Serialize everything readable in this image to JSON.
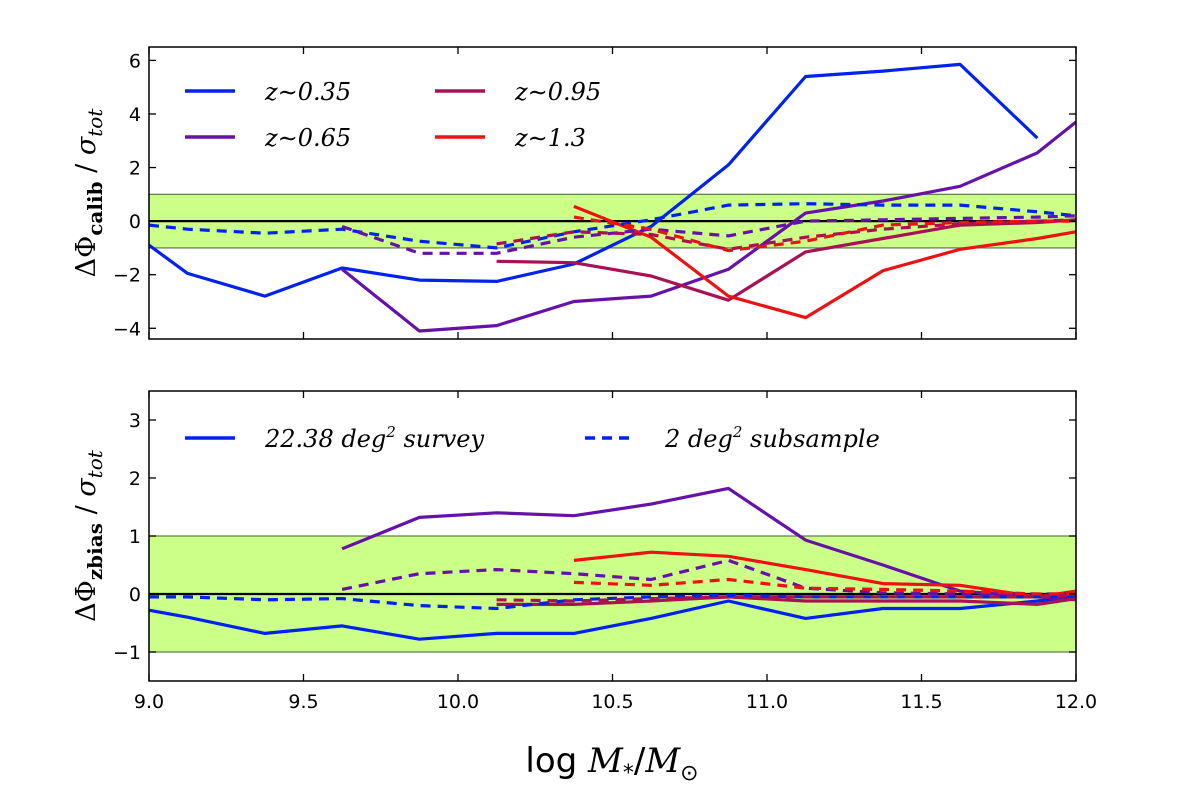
{
  "chart_data": [
    {
      "type": "line",
      "panel": "top",
      "ylabel": "ΔΦcalib / σtot",
      "ylabel_parts": {
        "delta_phi": "ΔΦ",
        "sub": "calib",
        "sep": " / ",
        "sigma": "σ",
        "sigma_sub": "tot"
      },
      "xlim": [
        9.0,
        12.0
      ],
      "ylim": [
        -4.4,
        6.5
      ],
      "yticks": [
        -4,
        -2,
        0,
        2,
        4,
        6
      ],
      "ytick_labels": [
        "−4",
        "−2",
        "0",
        "2",
        "4",
        "6"
      ],
      "band": [
        -1,
        1
      ],
      "band_color": "#ccff88",
      "zero_line": 0,
      "legend": [
        {
          "label": "z∼0.35",
          "color": "#0022ee"
        },
        {
          "label": "z∼0.95",
          "color": "#aa1155"
        },
        {
          "label": "z∼0.65",
          "color": "#6611aa"
        },
        {
          "label": "z∼1.3",
          "color": "#ee1111"
        }
      ],
      "series": [
        {
          "name": "z∼0.35 survey",
          "style": "solid",
          "color": "#0022ee",
          "x": [
            9.0,
            9.125,
            9.375,
            9.625,
            9.875,
            10.125,
            10.375,
            10.625,
            10.875,
            11.125,
            11.375,
            11.625,
            11.875
          ],
          "y": [
            -0.9,
            -1.95,
            -2.8,
            -1.75,
            -2.2,
            -2.25,
            -1.6,
            -0.2,
            2.1,
            5.4,
            5.6,
            5.85,
            3.1
          ]
        },
        {
          "name": "z∼0.65 survey",
          "style": "solid",
          "color": "#6611aa",
          "x": [
            9.625,
            9.875,
            10.125,
            10.375,
            10.625,
            10.875,
            11.125,
            11.375,
            11.625,
            11.875,
            12.0
          ],
          "y": [
            -1.8,
            -4.1,
            -3.9,
            -3.0,
            -2.8,
            -1.8,
            0.3,
            0.75,
            1.3,
            2.55,
            3.7
          ]
        },
        {
          "name": "z∼0.95 survey",
          "style": "solid",
          "color": "#aa1155",
          "x": [
            10.125,
            10.375,
            10.625,
            10.875,
            11.125,
            11.375,
            11.625,
            11.875,
            12.0
          ],
          "y": [
            -1.5,
            -1.55,
            -2.05,
            -2.95,
            -1.15,
            -0.65,
            -0.15,
            -0.05,
            0.05
          ]
        },
        {
          "name": "z∼1.3 survey",
          "style": "solid",
          "color": "#ee1111",
          "x": [
            10.375,
            10.625,
            10.875,
            11.125,
            11.375,
            11.625,
            11.875,
            12.0
          ],
          "y": [
            0.55,
            -0.6,
            -2.8,
            -3.6,
            -1.85,
            -1.05,
            -0.65,
            -0.4
          ]
        },
        {
          "name": "z∼0.35 subsample",
          "style": "dashed",
          "color": "#0022ee",
          "x": [
            9.0,
            9.125,
            9.375,
            9.625,
            9.875,
            10.125,
            10.375,
            10.625,
            10.875,
            11.125,
            11.375,
            11.625,
            11.875,
            12.0
          ],
          "y": [
            -0.15,
            -0.3,
            -0.45,
            -0.3,
            -0.75,
            -1.0,
            -0.4,
            0.05,
            0.6,
            0.65,
            0.6,
            0.6,
            0.35,
            0.2
          ]
        },
        {
          "name": "z∼0.65 subsample",
          "style": "dashed",
          "color": "#6611aa",
          "x": [
            9.625,
            9.875,
            10.125,
            10.375,
            10.625,
            10.875,
            11.125,
            11.375,
            11.625,
            11.875,
            12.0
          ],
          "y": [
            -0.2,
            -1.2,
            -1.2,
            -0.6,
            -0.3,
            -0.55,
            0.0,
            0.05,
            0.1,
            0.15,
            0.2
          ]
        },
        {
          "name": "z∼0.95 subsample",
          "style": "dashed",
          "color": "#aa1155",
          "x": [
            10.125,
            10.375,
            10.625,
            10.875,
            11.125,
            11.375,
            11.625,
            11.875,
            12.0
          ],
          "y": [
            -0.85,
            -0.4,
            -0.5,
            -1.05,
            -0.6,
            -0.3,
            -0.1,
            0.0,
            0.05
          ]
        },
        {
          "name": "z∼1.3 subsample",
          "style": "dashed",
          "color": "#ee1111",
          "x": [
            10.375,
            10.625,
            10.875,
            11.125,
            11.375,
            11.625,
            11.875,
            12.0
          ],
          "y": [
            0.15,
            -0.3,
            -1.1,
            -0.75,
            -0.15,
            -0.05,
            0.0,
            0.0
          ]
        }
      ]
    },
    {
      "type": "line",
      "panel": "bottom",
      "ylabel": "ΔΦzbias / σtot",
      "ylabel_parts": {
        "delta_phi": "ΔΦ",
        "sub": "zbias",
        "sep": " / ",
        "sigma": "σ",
        "sigma_sub": "tot"
      },
      "xlabel": "log M*/M⊙",
      "xlabel_parts": {
        "log": "log ",
        "m": "M",
        "m_sub": "*",
        "slash": "/",
        "m2": "M",
        "m2_sub": "⊙"
      },
      "xlim": [
        9.0,
        12.0
      ],
      "xticks": [
        9.0,
        9.5,
        10.0,
        10.5,
        11.0,
        11.5,
        12.0
      ],
      "xtick_labels": [
        "9.0",
        "9.5",
        "10.0",
        "10.5",
        "11.0",
        "11.5",
        "12.0"
      ],
      "ylim": [
        -1.5,
        3.5
      ],
      "yticks": [
        -1,
        0,
        1,
        2,
        3
      ],
      "ytick_labels": [
        "−1",
        "0",
        "1",
        "2",
        "3"
      ],
      "band": [
        -1,
        1
      ],
      "band_color": "#ccff88",
      "zero_line": 0,
      "legend": [
        {
          "label": "22.38 deg",
          "sup": "2",
          "tail": "  survey",
          "style": "solid",
          "color": "#0022ee"
        },
        {
          "label": "2 deg",
          "sup": "2",
          "tail": "  subsample",
          "style": "dashed",
          "color": "#0022ee"
        }
      ],
      "series": [
        {
          "name": "z∼0.35 survey",
          "style": "solid",
          "color": "#0022ee",
          "x": [
            9.0,
            9.125,
            9.375,
            9.625,
            9.875,
            10.125,
            10.375,
            10.625,
            10.875,
            11.125,
            11.375,
            11.625,
            11.875,
            12.0
          ],
          "y": [
            -0.28,
            -0.4,
            -0.68,
            -0.55,
            -0.78,
            -0.68,
            -0.68,
            -0.42,
            -0.12,
            -0.42,
            -0.25,
            -0.25,
            -0.12,
            -0.05
          ]
        },
        {
          "name": "z∼0.65 survey",
          "style": "solid",
          "color": "#6611aa",
          "x": [
            9.625,
            9.875,
            10.125,
            10.375,
            10.625,
            10.875,
            11.125,
            11.375,
            11.625,
            11.875,
            12.0
          ],
          "y": [
            0.78,
            1.32,
            1.4,
            1.35,
            1.55,
            1.82,
            0.93,
            0.5,
            0.05,
            -0.05,
            -0.1
          ]
        },
        {
          "name": "z∼0.95 survey",
          "style": "solid",
          "color": "#aa1155",
          "x": [
            10.125,
            10.375,
            10.625,
            10.875,
            11.125,
            11.375,
            11.625,
            11.875,
            12.0
          ],
          "y": [
            -0.18,
            -0.18,
            -0.12,
            -0.05,
            -0.12,
            -0.12,
            -0.12,
            -0.18,
            -0.08
          ]
        },
        {
          "name": "z∼1.3 survey",
          "style": "solid",
          "color": "#ee1111",
          "x": [
            10.375,
            10.625,
            10.875,
            11.125,
            11.375,
            11.625,
            11.875,
            12.0
          ],
          "y": [
            0.58,
            0.72,
            0.65,
            0.42,
            0.18,
            0.15,
            -0.05,
            0.05
          ]
        },
        {
          "name": "z∼0.35 subsample",
          "style": "dashed",
          "color": "#0022ee",
          "x": [
            9.0,
            9.125,
            9.375,
            9.625,
            9.875,
            10.125,
            10.375,
            10.625,
            10.875,
            11.125,
            11.375,
            11.625,
            11.875,
            12.0
          ],
          "y": [
            -0.05,
            -0.05,
            -0.1,
            -0.08,
            -0.2,
            -0.25,
            -0.1,
            -0.05,
            -0.02,
            -0.05,
            -0.05,
            -0.05,
            -0.05,
            -0.02
          ]
        },
        {
          "name": "z∼0.65 subsample",
          "style": "dashed",
          "color": "#6611aa",
          "x": [
            9.625,
            9.875,
            10.125,
            10.375,
            10.625,
            10.875,
            11.125,
            11.375,
            11.625,
            11.875,
            12.0
          ],
          "y": [
            0.08,
            0.35,
            0.42,
            0.35,
            0.25,
            0.58,
            0.1,
            0.02,
            0.0,
            0.0,
            0.0
          ]
        },
        {
          "name": "z∼0.95 subsample",
          "style": "dashed",
          "color": "#aa1155",
          "x": [
            10.125,
            10.375,
            10.625,
            10.875,
            11.125,
            11.375,
            11.625,
            11.875,
            12.0
          ],
          "y": [
            -0.1,
            -0.12,
            -0.08,
            -0.05,
            -0.05,
            -0.05,
            -0.05,
            -0.05,
            -0.02
          ]
        },
        {
          "name": "z∼1.3 subsample",
          "style": "dashed",
          "color": "#ee1111",
          "x": [
            10.375,
            10.625,
            10.875,
            11.125,
            11.375,
            11.625,
            11.875,
            12.0
          ],
          "y": [
            0.2,
            0.15,
            0.25,
            0.1,
            0.08,
            0.05,
            0.0,
            0.0
          ]
        }
      ]
    }
  ]
}
